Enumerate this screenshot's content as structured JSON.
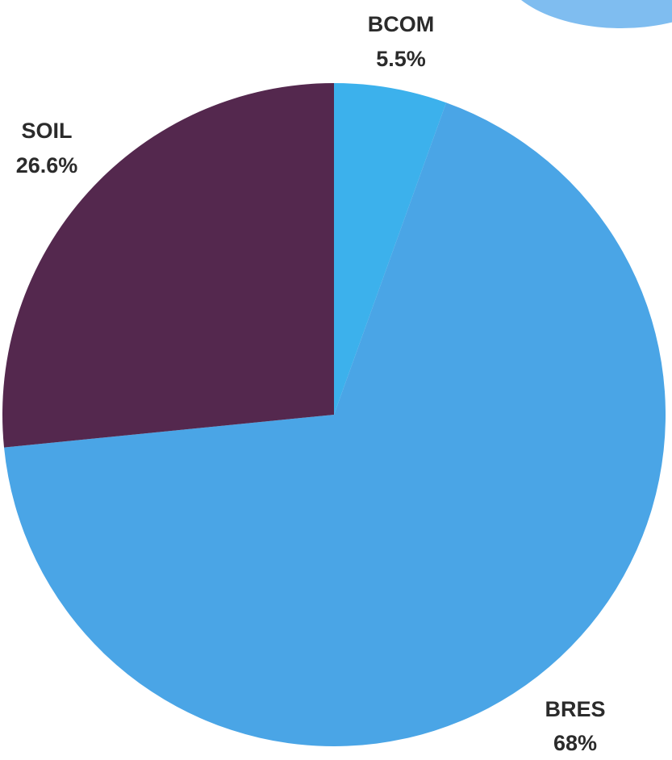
{
  "chart_data": {
    "type": "pie",
    "slices": [
      {
        "label": "BCOM",
        "value": 5.5,
        "value_label": "5.5%",
        "color": "#3cb1ec"
      },
      {
        "label": "BRES",
        "value": 68,
        "value_label": "68%",
        "color": "#4aa5e6"
      },
      {
        "label": "SOIL",
        "value": 26.6,
        "value_label": "26.6%",
        "color": "#54284e"
      }
    ],
    "start": "top",
    "direction": "clockwise",
    "legend": "none"
  },
  "decoration": {
    "corner_shape_color": "#7fbdf0"
  }
}
